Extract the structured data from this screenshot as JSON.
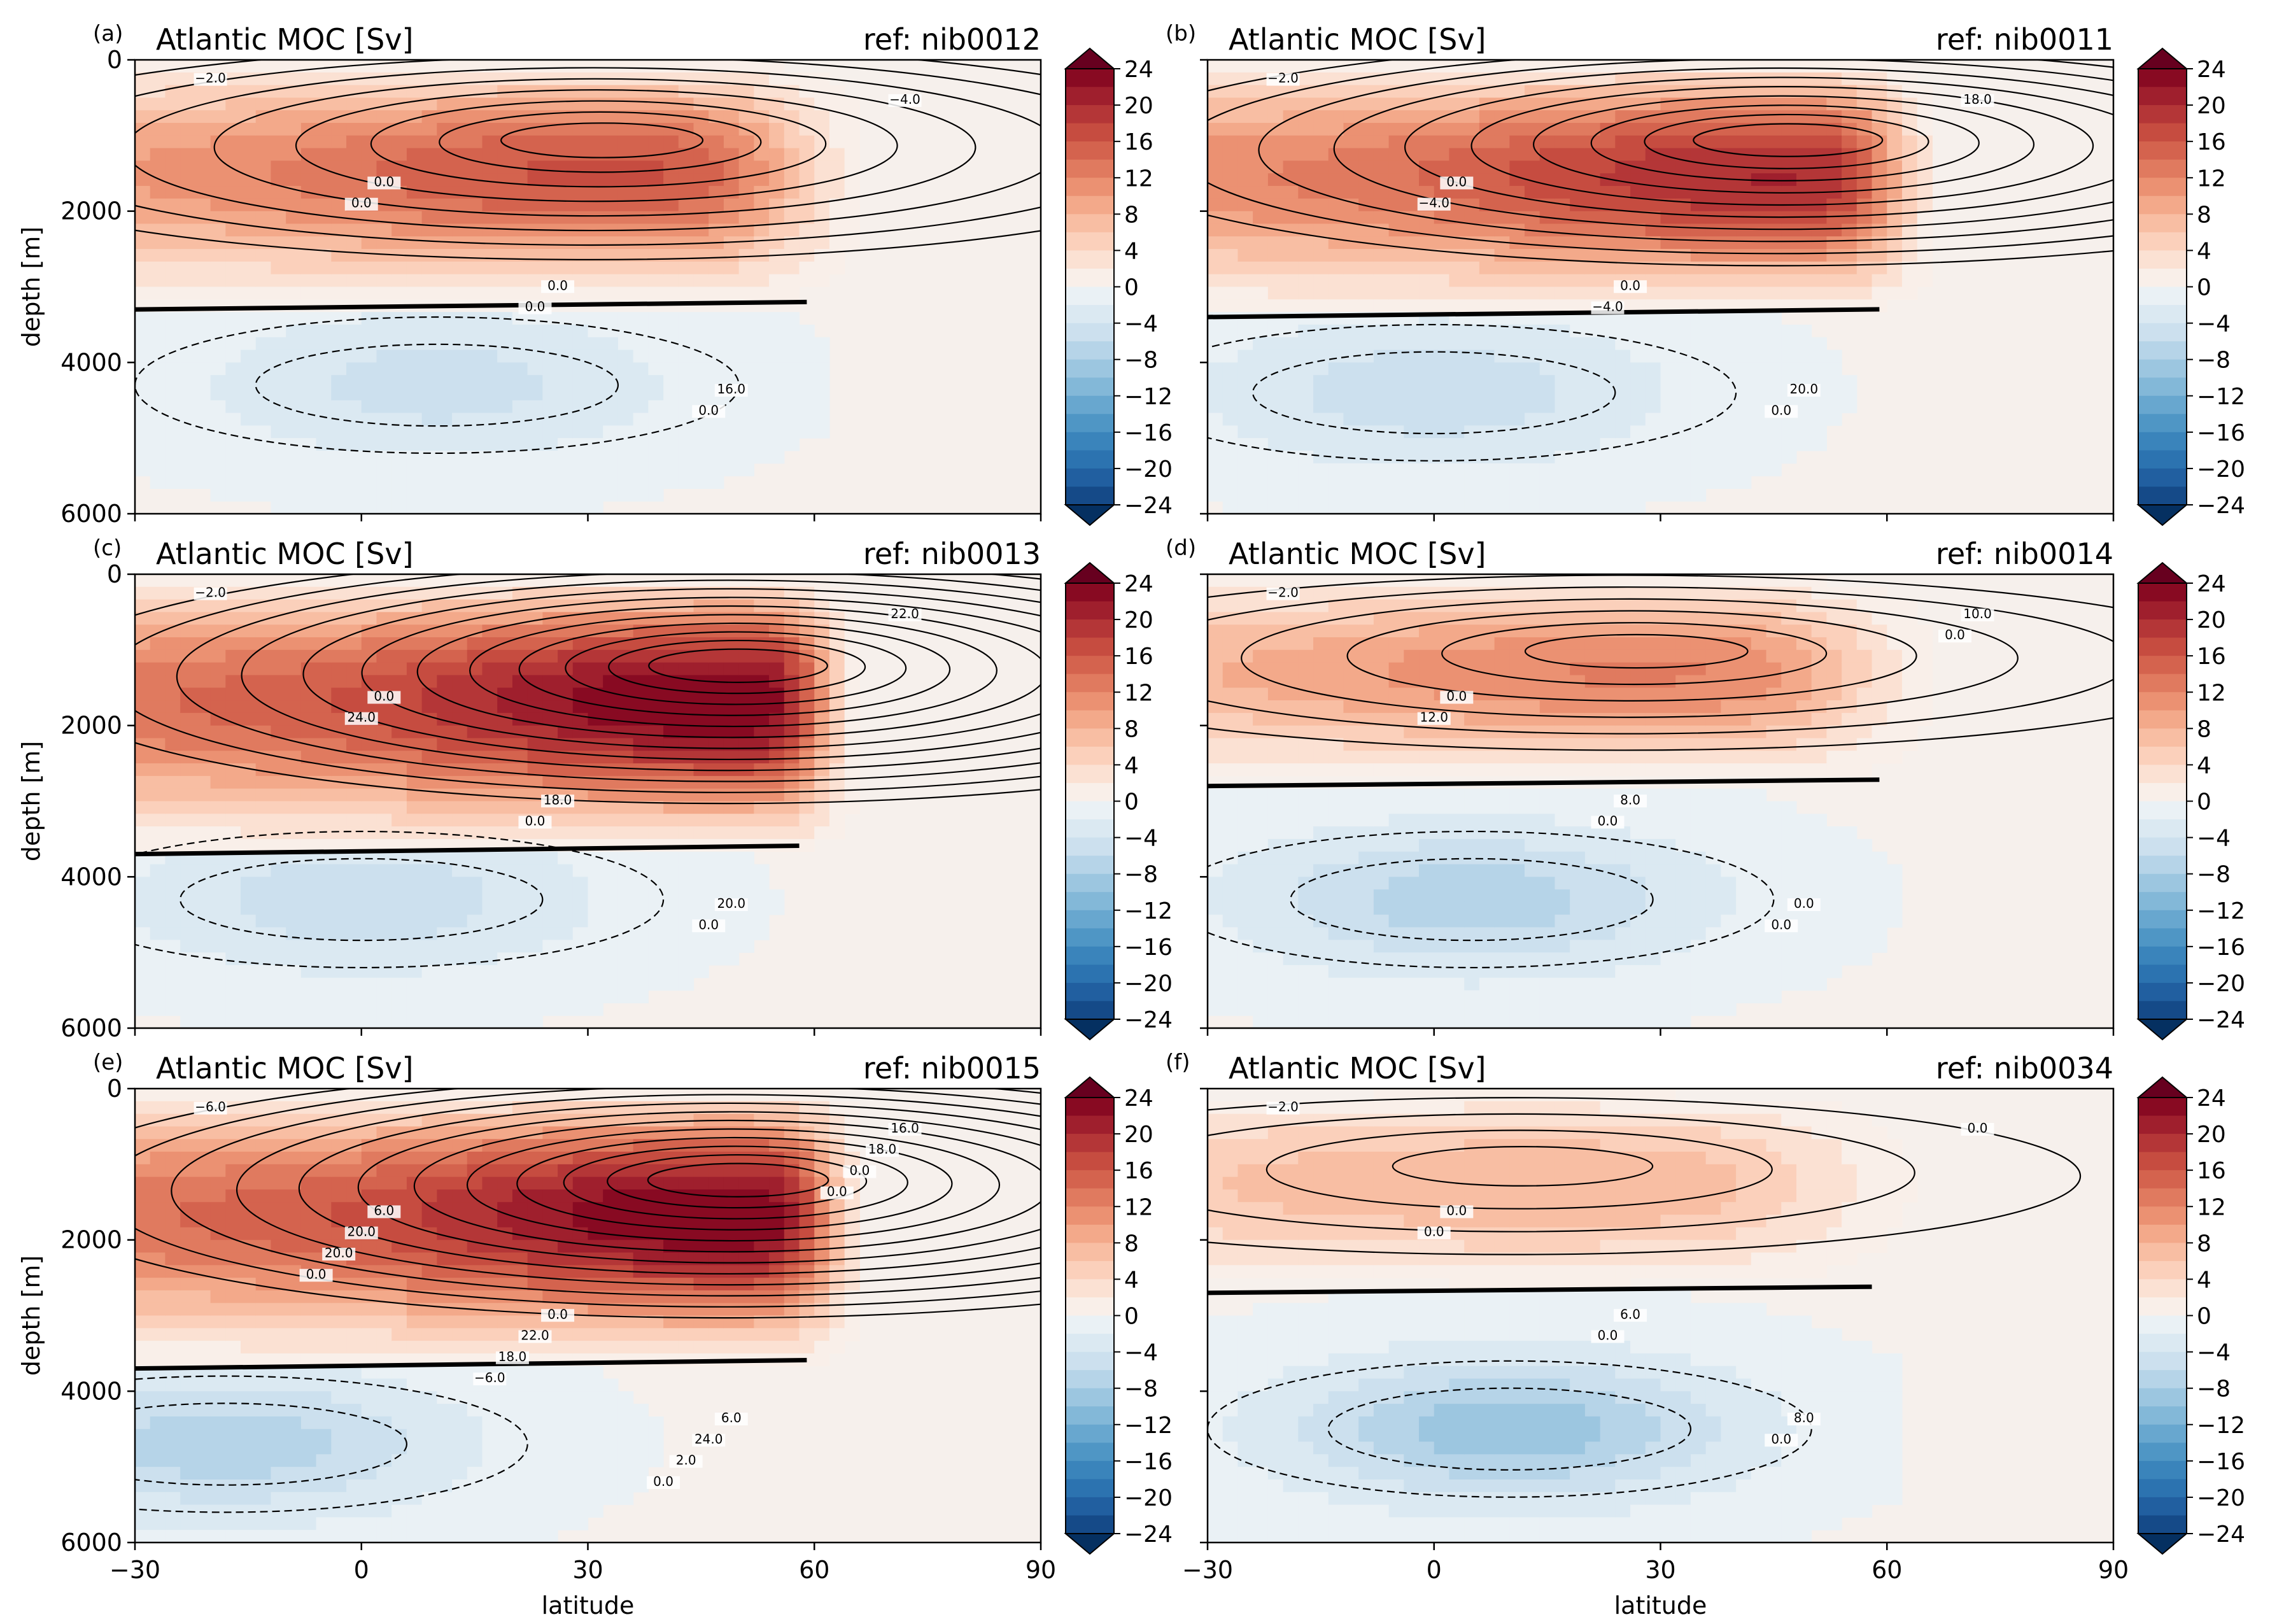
{
  "figure": {
    "y_axis_label": "depth [m]",
    "x_axis_label": "latitude"
  },
  "chart_data": [
    {
      "type": "heatmap",
      "panel_letter": "(a)",
      "title": "Atlantic MOC [Sv]",
      "ref_label": "ref: nib0012",
      "xlim": [
        -30,
        90
      ],
      "ylim": [
        6000,
        0
      ],
      "x_ticks": [
        "−30",
        "0",
        "30",
        "60",
        "90"
      ],
      "y_ticks": [
        "0",
        "2000",
        "4000",
        "6000"
      ],
      "show_x_ticklabels": false,
      "show_y_ticklabels": true,
      "colorbar_ticks": [
        "24",
        "20",
        "16",
        "12",
        "8",
        "4",
        "0",
        "−4",
        "−8",
        "−12",
        "−16",
        "−20",
        "−24"
      ],
      "cell_max": {
        "lat": 30,
        "depth": 1050,
        "value": 17
      },
      "cell_min": {
        "lat": 10,
        "depth": 4300,
        "value": -4.5
      },
      "positive_extent": {
        "lat0": -30,
        "lat1": 67,
        "depth_bottom": 3300
      },
      "contour_labels": [
        "−2.0",
        "0.0",
        "0.0",
        "16.0",
        "−4.0",
        "0.0",
        "0.0",
        "0.0"
      ]
    },
    {
      "type": "heatmap",
      "panel_letter": "(b)",
      "title": "Atlantic MOC [Sv]",
      "ref_label": "ref: nib0011",
      "xlim": [
        -30,
        90
      ],
      "ylim": [
        6000,
        0
      ],
      "x_ticks": [
        "−30",
        "0",
        "30",
        "60",
        "90"
      ],
      "y_ticks": [
        "0",
        "2000",
        "4000",
        "6000"
      ],
      "show_x_ticklabels": false,
      "show_y_ticklabels": false,
      "colorbar_ticks": [
        "24",
        "20",
        "16",
        "12",
        "8",
        "4",
        "0",
        "−4",
        "−8",
        "−12",
        "−16",
        "−20",
        "−24"
      ],
      "cell_max": {
        "lat": 45,
        "depth": 1050,
        "value": 21
      },
      "cell_min": {
        "lat": 0,
        "depth": 4400,
        "value": -5
      },
      "positive_extent": {
        "lat0": -30,
        "lat1": 67,
        "depth_bottom": 3400
      },
      "contour_labels": [
        "−2.0",
        "0.0",
        "0.0",
        "20.0",
        "18.0",
        "−4.0",
        "−4.0",
        "0.0"
      ]
    },
    {
      "type": "heatmap",
      "panel_letter": "(c)",
      "title": "Atlantic MOC [Sv]",
      "ref_label": "ref: nib0013",
      "xlim": [
        -30,
        90
      ],
      "ylim": [
        6000,
        0
      ],
      "x_ticks": [
        "−30",
        "0",
        "30",
        "60",
        "90"
      ],
      "y_ticks": [
        "0",
        "2000",
        "4000",
        "6000"
      ],
      "show_x_ticklabels": false,
      "show_y_ticklabels": true,
      "colorbar_ticks": [
        "24",
        "20",
        "16",
        "12",
        "8",
        "4",
        "0",
        "−4",
        "−8",
        "−12",
        "−16",
        "−20",
        "−24"
      ],
      "cell_max": {
        "lat": 48,
        "depth": 1200,
        "value": 25
      },
      "cell_min": {
        "lat": 0,
        "depth": 4300,
        "value": -5
      },
      "positive_extent": {
        "lat0": -30,
        "lat1": 66,
        "depth_bottom": 3700
      },
      "contour_labels": [
        "−2.0",
        "0.0",
        "18.0",
        "20.0",
        "22.0",
        "24.0",
        "0.0",
        "0.0"
      ]
    },
    {
      "type": "heatmap",
      "panel_letter": "(d)",
      "title": "Atlantic MOC [Sv]",
      "ref_label": "ref: nib0014",
      "xlim": [
        -30,
        90
      ],
      "ylim": [
        6000,
        0
      ],
      "x_ticks": [
        "−30",
        "0",
        "30",
        "60",
        "90"
      ],
      "y_ticks": [
        "0",
        "2000",
        "4000",
        "6000"
      ],
      "show_x_ticklabels": false,
      "show_y_ticklabels": false,
      "colorbar_ticks": [
        "24",
        "20",
        "16",
        "12",
        "8",
        "4",
        "0",
        "−4",
        "−8",
        "−12",
        "−16",
        "−20",
        "−24"
      ],
      "cell_max": {
        "lat": 25,
        "depth": 1000,
        "value": 12.5
      },
      "cell_min": {
        "lat": 5,
        "depth": 4300,
        "value": -7
      },
      "positive_extent": {
        "lat0": -30,
        "lat1": 67,
        "depth_bottom": 2800
      },
      "contour_labels": [
        "−2.0",
        "0.0",
        "8.0",
        "0.0",
        "10.0",
        "12.0",
        "0.0",
        "0.0",
        "0.0"
      ]
    },
    {
      "type": "heatmap",
      "panel_letter": "(e)",
      "title": "Atlantic MOC [Sv]",
      "ref_label": "ref: nib0015",
      "xlim": [
        -30,
        90
      ],
      "ylim": [
        6000,
        0
      ],
      "x_ticks": [
        "−30",
        "0",
        "30",
        "60",
        "90"
      ],
      "y_ticks": [
        "0",
        "2000",
        "4000",
        "6000"
      ],
      "show_x_ticklabels": true,
      "show_y_ticklabels": true,
      "colorbar_ticks": [
        "24",
        "20",
        "16",
        "12",
        "8",
        "4",
        "0",
        "−4",
        "−8",
        "−12",
        "−16",
        "−20",
        "−24"
      ],
      "cell_max": {
        "lat": 48,
        "depth": 1200,
        "value": 25
      },
      "cell_min": {
        "lat": -18,
        "depth": 4700,
        "value": -7
      },
      "positive_extent": {
        "lat0": -30,
        "lat1": 67,
        "depth_bottom": 3700
      },
      "contour_labels": [
        "−6.0",
        "6.0",
        "0.0",
        "6.0",
        "16.0",
        "20.0",
        "22.0",
        "24.0",
        "18.0",
        "20.0",
        "18.0",
        "2.0",
        "0.0",
        "0.0",
        "−6.0",
        "0.0",
        "0.0"
      ]
    },
    {
      "type": "heatmap",
      "panel_letter": "(f)",
      "title": "Atlantic MOC [Sv]",
      "ref_label": "ref: nib0034",
      "xlim": [
        -30,
        90
      ],
      "ylim": [
        6000,
        0
      ],
      "x_ticks": [
        "−30",
        "0",
        "30",
        "60",
        "90"
      ],
      "y_ticks": [
        "0",
        "2000",
        "4000",
        "6000"
      ],
      "show_x_ticklabels": true,
      "show_y_ticklabels": false,
      "colorbar_ticks": [
        "24",
        "20",
        "16",
        "12",
        "8",
        "4",
        "0",
        "−4",
        "−8",
        "−12",
        "−16",
        "−20",
        "−24"
      ],
      "cell_max": {
        "lat": 10,
        "depth": 1000,
        "value": 8
      },
      "cell_min": {
        "lat": 10,
        "depth": 4500,
        "value": -9
      },
      "positive_extent": {
        "lat0": -30,
        "lat1": 66,
        "depth_bottom": 2700
      },
      "contour_labels": [
        "−2.0",
        "0.0",
        "6.0",
        "8.0",
        "0.0",
        "0.0",
        "0.0",
        "0.0"
      ]
    }
  ]
}
